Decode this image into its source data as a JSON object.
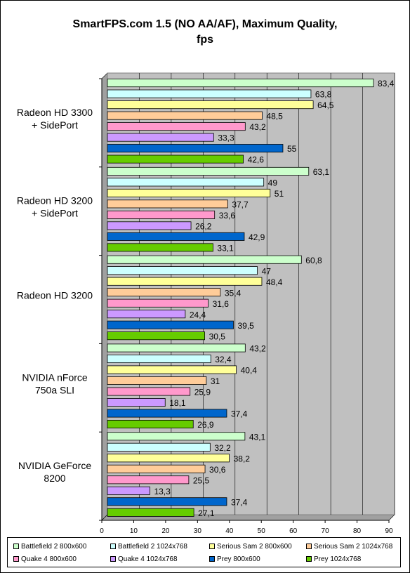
{
  "chart_data": {
    "type": "bar",
    "orientation": "horizontal",
    "title": "SmartFPS.com 1.5 (NO AA/AF), Maximum Quality,",
    "subtitle": "fps",
    "categories": [
      "Radeon HD 3300\n+ SidePort",
      "Radeon HD 3200\n+ SidePort",
      "Radeon HD 3200",
      "NVIDIA nForce\n750a SLI",
      "NVIDIA GeForce\n8200"
    ],
    "series": [
      {
        "name": "Battlefield 2 800x600",
        "color": "#ccffcc",
        "values": [
          83.4,
          63.1,
          60.8,
          43.2,
          43.1
        ],
        "labels": [
          "83,4",
          "63,1",
          "60,8",
          "43,2",
          "43,1"
        ]
      },
      {
        "name": "Battlefield 2 1024x768",
        "color": "#ccffff",
        "values": [
          63.8,
          49,
          47,
          32.4,
          32.2
        ],
        "labels": [
          "63,8",
          "49",
          "47",
          "32,4",
          "32,2"
        ]
      },
      {
        "name": "Serious Sam 2 800x600",
        "color": "#ffff99",
        "values": [
          64.5,
          51,
          48.4,
          40.4,
          38.2
        ],
        "labels": [
          "64,5",
          "51",
          "48,4",
          "40,4",
          "38,2"
        ]
      },
      {
        "name": "Serious Sam 2 1024x768",
        "color": "#ffcc99",
        "values": [
          48.5,
          37.7,
          35.4,
          31,
          30.6
        ],
        "labels": [
          "48,5",
          "37,7",
          "35,4",
          "31",
          "30,6"
        ]
      },
      {
        "name": "Quake 4 800x600",
        "color": "#ff99cc",
        "values": [
          43.2,
          33.6,
          31.6,
          25.9,
          25.5
        ],
        "labels": [
          "43,2",
          "33,6",
          "31,6",
          "25,9",
          "25,5"
        ]
      },
      {
        "name": "Quake 4 1024x768",
        "color": "#cc99ff",
        "values": [
          33.3,
          26.2,
          24.4,
          18.1,
          13.3
        ],
        "labels": [
          "33,3",
          "26,2",
          "24,4",
          "18,1",
          "13,3"
        ]
      },
      {
        "name": "Prey 800x600",
        "color": "#0066cc",
        "values": [
          55,
          42.9,
          39.5,
          37.4,
          37.4
        ],
        "labels": [
          "55",
          "42,9",
          "39,5",
          "37,4",
          "37,4"
        ]
      },
      {
        "name": "Prey 1024x768",
        "color": "#66cc00",
        "values": [
          42.6,
          33.1,
          30.5,
          26.9,
          27.1
        ],
        "labels": [
          "42,6",
          "33,1",
          "30,5",
          "26,9",
          "27,1"
        ]
      }
    ],
    "x_ticks": [
      "0",
      "10",
      "20",
      "30",
      "40",
      "50",
      "60",
      "70",
      "80",
      "90"
    ],
    "xlim": [
      0,
      90
    ],
    "grid": true,
    "legend_position": "bottom",
    "plot_background": "#c0c0c0",
    "xlabel": "",
    "ylabel": ""
  }
}
